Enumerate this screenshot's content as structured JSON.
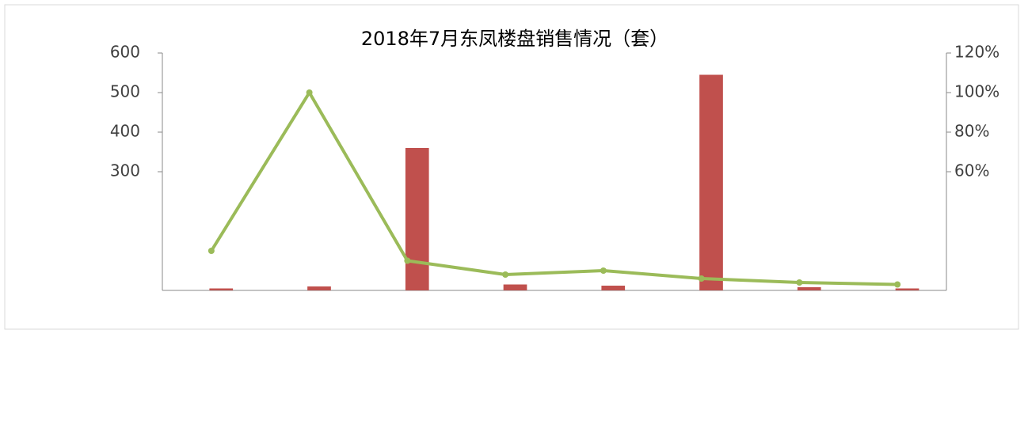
{
  "chart_data": {
    "type": "bar-line",
    "title": "2018年7月东凤楼盘销售情况（套）",
    "categories": [
      null,
      null,
      null,
      null,
      null,
      null,
      null,
      null
    ],
    "series": [
      {
        "color": "#c0504d",
        "values": [
          5,
          10,
          360,
          15,
          12,
          545,
          8,
          5
        ]
      },
      {
        "color": "#9bbb59",
        "axis": "y2",
        "values": [
          20,
          100,
          15,
          8,
          10,
          6,
          4,
          3
        ]
      }
    ],
    "ylim": [
      0,
      600
    ],
    "yticks": [
      300,
      400,
      500,
      600
    ],
    "y2lim": [
      0,
      1.2
    ],
    "y2ticks": [
      {
        "value": 0.6,
        "label": "60%"
      },
      {
        "value": 0.8,
        "label": "80%"
      },
      {
        "value": 1.0,
        "label": "100%"
      },
      {
        "value": 1.2,
        "label": "120%"
      }
    ]
  }
}
